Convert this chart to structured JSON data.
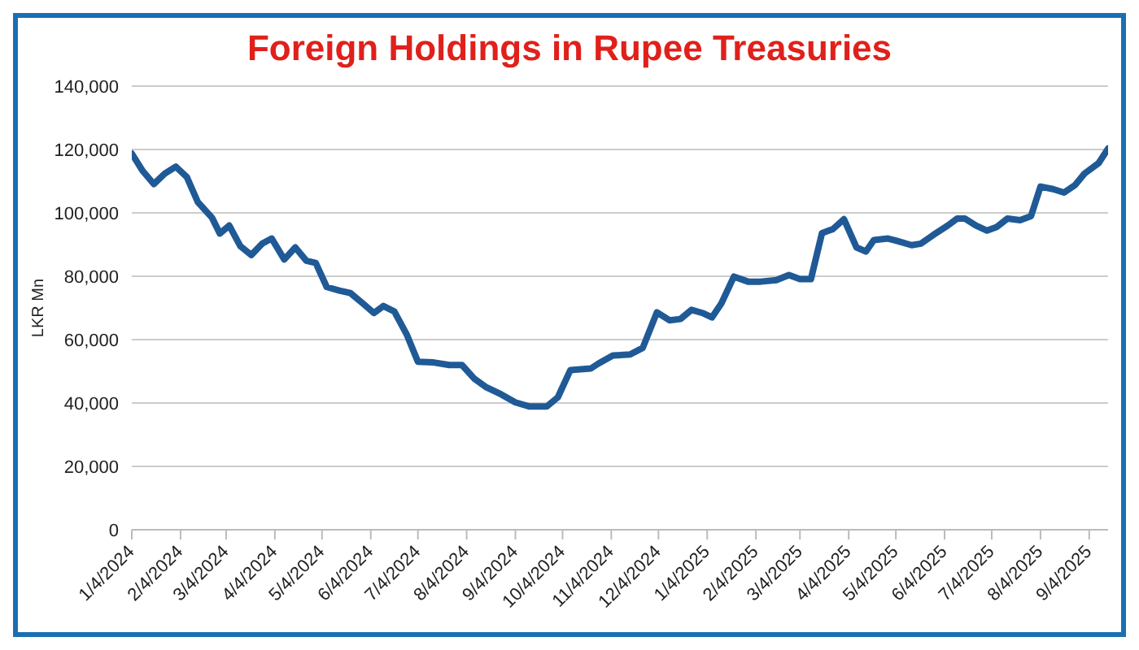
{
  "chart_data": {
    "type": "line",
    "title": "Foreign Holdings in Rupee Treasuries",
    "ylabel": "LKR Mn",
    "x": [
      "2024-01-04",
      "2024-01-11",
      "2024-01-18",
      "2024-01-25",
      "2024-02-01",
      "2024-02-08",
      "2024-02-15",
      "2024-02-24",
      "2024-02-29",
      "2024-03-06",
      "2024-03-13",
      "2024-03-20",
      "2024-03-27",
      "2024-04-02",
      "2024-04-10",
      "2024-04-17",
      "2024-04-24",
      "2024-04-30",
      "2024-05-07",
      "2024-05-15",
      "2024-05-22",
      "2024-05-30",
      "2024-06-06",
      "2024-06-12",
      "2024-06-19",
      "2024-06-27",
      "2024-07-04",
      "2024-07-14",
      "2024-07-24",
      "2024-08-01",
      "2024-08-09",
      "2024-08-16",
      "2024-08-26",
      "2024-09-04",
      "2024-09-13",
      "2024-09-24",
      "2024-10-01",
      "2024-10-09",
      "2024-10-22",
      "2024-10-27",
      "2024-11-05",
      "2024-11-16",
      "2024-11-24",
      "2024-12-03",
      "2024-12-11",
      "2024-12-18",
      "2024-12-25",
      "2025-01-01",
      "2025-01-07",
      "2025-01-13",
      "2025-01-21",
      "2025-01-30",
      "2025-02-07",
      "2025-02-17",
      "2025-02-25",
      "2025-03-04",
      "2025-03-11",
      "2025-03-18",
      "2025-03-25",
      "2025-04-01",
      "2025-04-09",
      "2025-04-15",
      "2025-04-20",
      "2025-04-29",
      "2025-05-05",
      "2025-05-14",
      "2025-05-20",
      "2025-05-28",
      "2025-06-06",
      "2025-06-12",
      "2025-06-17",
      "2025-06-24",
      "2025-07-01",
      "2025-07-07",
      "2025-07-14",
      "2025-07-22",
      "2025-07-29",
      "2025-08-04",
      "2025-08-12",
      "2025-08-19",
      "2025-08-26",
      "2025-09-01",
      "2025-09-10",
      "2025-09-16"
    ],
    "series": [
      {
        "color": "#1f5a96",
        "values": [
          118700,
          113200,
          109100,
          112400,
          114600,
          111300,
          103400,
          98500,
          93500,
          96000,
          89500,
          86700,
          90300,
          91900,
          85300,
          89100,
          84900,
          84200,
          76600,
          75500,
          74700,
          71400,
          68400,
          70600,
          68900,
          61500,
          53000,
          52800,
          52000,
          52000,
          47600,
          45100,
          42700,
          40200,
          38900,
          38900,
          41800,
          50400,
          50900,
          52500,
          55000,
          55300,
          57400,
          68600,
          66100,
          66500,
          69400,
          68400,
          67000,
          71400,
          79900,
          78300,
          78300,
          78800,
          80400,
          79100,
          79100,
          93600,
          94900,
          98000,
          89100,
          87800,
          91400,
          91900,
          91100,
          89800,
          90300,
          93100,
          96000,
          98200,
          98200,
          96000,
          94400,
          95500,
          98200,
          97700,
          99000,
          108300,
          107500,
          106400,
          108800,
          112400,
          115700,
          120300
        ]
      }
    ],
    "xlim": [
      "2024-01-04",
      "2025-09-16"
    ],
    "xticks": [
      {
        "value": "2024-01-04",
        "label": "1/4/2024"
      },
      {
        "value": "2024-02-04",
        "label": "2/4/2024"
      },
      {
        "value": "2024-03-04",
        "label": "3/4/2024"
      },
      {
        "value": "2024-04-04",
        "label": "4/4/2024"
      },
      {
        "value": "2024-05-04",
        "label": "5/4/2024"
      },
      {
        "value": "2024-06-04",
        "label": "6/4/2024"
      },
      {
        "value": "2024-07-04",
        "label": "7/4/2024"
      },
      {
        "value": "2024-08-04",
        "label": "8/4/2024"
      },
      {
        "value": "2024-09-04",
        "label": "9/4/2024"
      },
      {
        "value": "2024-10-04",
        "label": "10/4/2024"
      },
      {
        "value": "2024-11-04",
        "label": "11/4/2024"
      },
      {
        "value": "2024-12-04",
        "label": "12/4/2024"
      },
      {
        "value": "2025-01-04",
        "label": "1/4/2025"
      },
      {
        "value": "2025-02-04",
        "label": "2/4/2025"
      },
      {
        "value": "2025-03-04",
        "label": "3/4/2025"
      },
      {
        "value": "2025-04-04",
        "label": "4/4/2025"
      },
      {
        "value": "2025-05-04",
        "label": "5/4/2025"
      },
      {
        "value": "2025-06-04",
        "label": "6/4/2025"
      },
      {
        "value": "2025-07-04",
        "label": "7/4/2025"
      },
      {
        "value": "2025-08-04",
        "label": "8/4/2025"
      },
      {
        "value": "2025-09-04",
        "label": "9/4/2025"
      }
    ],
    "ylim": [
      0,
      140000
    ],
    "yticks": [
      {
        "value": 0,
        "label": "0"
      },
      {
        "value": 20000,
        "label": "20,000"
      },
      {
        "value": 40000,
        "label": "40,000"
      },
      {
        "value": 60000,
        "label": "60,000"
      },
      {
        "value": 80000,
        "label": "80,000"
      },
      {
        "value": 100000,
        "label": "100,000"
      },
      {
        "value": 120000,
        "label": "120,000"
      },
      {
        "value": 140000,
        "label": "140,000"
      }
    ],
    "grid": "y",
    "marker": "none",
    "line_style": "solid"
  }
}
